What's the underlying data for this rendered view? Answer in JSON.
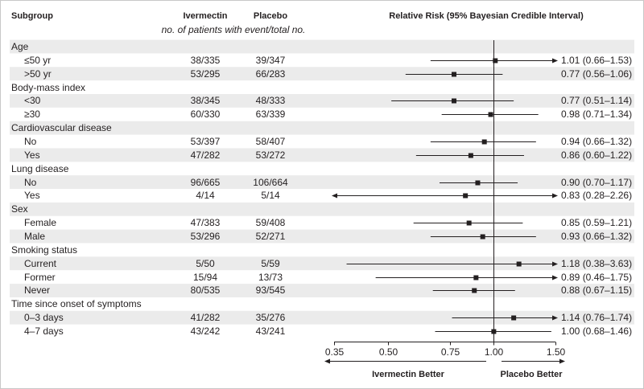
{
  "header": {
    "subgroup": "Subgroup",
    "ivermectin": "Ivermectin",
    "placebo": "Placebo",
    "counts_note": "no. of patients with event/total no.",
    "relative_risk": "Relative Risk (95% Bayesian Credible Interval)"
  },
  "chart_data": {
    "type": "scatter",
    "x_scale": "log",
    "xlim": [
      0.35,
      1.5
    ],
    "xtick_labels": [
      "0.35",
      "0.50",
      "0.75",
      "1.00",
      "1.50"
    ],
    "reference_value": 1.0,
    "direction_labels": {
      "left": "Ivermectin Better",
      "right": "Placebo Better"
    },
    "subgroups": [
      {
        "name": "Age",
        "items": [
          {
            "label": "≤50 yr",
            "ivermectin": "38/335",
            "placebo": "39/347",
            "rr": 1.01,
            "lo": 0.66,
            "hi": 1.53,
            "rr_text": "1.01 (0.66–1.53)"
          },
          {
            "label": ">50 yr",
            "ivermectin": "53/295",
            "placebo": "66/283",
            "rr": 0.77,
            "lo": 0.56,
            "hi": 1.06,
            "rr_text": "0.77 (0.56–1.06)"
          }
        ]
      },
      {
        "name": "Body-mass index",
        "items": [
          {
            "label": "<30",
            "ivermectin": "38/345",
            "placebo": "48/333",
            "rr": 0.77,
            "lo": 0.51,
            "hi": 1.14,
            "rr_text": "0.77 (0.51–1.14)"
          },
          {
            "label": "≥30",
            "ivermectin": "60/330",
            "placebo": "63/339",
            "rr": 0.98,
            "lo": 0.71,
            "hi": 1.34,
            "rr_text": "0.98 (0.71–1.34)"
          }
        ]
      },
      {
        "name": "Cardiovascular disease",
        "items": [
          {
            "label": "No",
            "ivermectin": "53/397",
            "placebo": "58/407",
            "rr": 0.94,
            "lo": 0.66,
            "hi": 1.32,
            "rr_text": "0.94 (0.66–1.32)"
          },
          {
            "label": "Yes",
            "ivermectin": "47/282",
            "placebo": "53/272",
            "rr": 0.86,
            "lo": 0.6,
            "hi": 1.22,
            "rr_text": "0.86 (0.60–1.22)"
          }
        ]
      },
      {
        "name": "Lung disease",
        "items": [
          {
            "label": "No",
            "ivermectin": "96/665",
            "placebo": "106/664",
            "rr": 0.9,
            "lo": 0.7,
            "hi": 1.17,
            "rr_text": "0.90 (0.70–1.17)"
          },
          {
            "label": "Yes",
            "ivermectin": "4/14",
            "placebo": "5/14",
            "rr": 0.83,
            "lo": 0.28,
            "hi": 2.26,
            "rr_text": "0.83 (0.28–2.26)"
          }
        ]
      },
      {
        "name": "Sex",
        "items": [
          {
            "label": "Female",
            "ivermectin": "47/383",
            "placebo": "59/408",
            "rr": 0.85,
            "lo": 0.59,
            "hi": 1.21,
            "rr_text": "0.85 (0.59–1.21)"
          },
          {
            "label": "Male",
            "ivermectin": "53/296",
            "placebo": "52/271",
            "rr": 0.93,
            "lo": 0.66,
            "hi": 1.32,
            "rr_text": "0.93 (0.66–1.32)"
          }
        ]
      },
      {
        "name": "Smoking status",
        "items": [
          {
            "label": "Current",
            "ivermectin": "5/50",
            "placebo": "5/59",
            "rr": 1.18,
            "lo": 0.38,
            "hi": 3.63,
            "rr_text": "1.18 (0.38–3.63)"
          },
          {
            "label": "Former",
            "ivermectin": "15/94",
            "placebo": "13/73",
            "rr": 0.89,
            "lo": 0.46,
            "hi": 1.75,
            "rr_text": "0.89 (0.46–1.75)"
          },
          {
            "label": "Never",
            "ivermectin": "80/535",
            "placebo": "93/545",
            "rr": 0.88,
            "lo": 0.67,
            "hi": 1.15,
            "rr_text": "0.88 (0.67–1.15)"
          }
        ]
      },
      {
        "name": "Time since onset of symptoms",
        "items": [
          {
            "label": "0–3 days",
            "ivermectin": "41/282",
            "placebo": "35/276",
            "rr": 1.14,
            "lo": 0.76,
            "hi": 1.74,
            "rr_text": "1.14 (0.76–1.74)"
          },
          {
            "label": "4–7 days",
            "ivermectin": "43/242",
            "placebo": "43/241",
            "rr": 1.0,
            "lo": 0.68,
            "hi": 1.46,
            "rr_text": "1.00 (0.68–1.46)"
          }
        ]
      }
    ]
  },
  "colors": {
    "ink": "#231f20",
    "row_shade": "#ebebeb",
    "frame": "#c8c8c8"
  }
}
